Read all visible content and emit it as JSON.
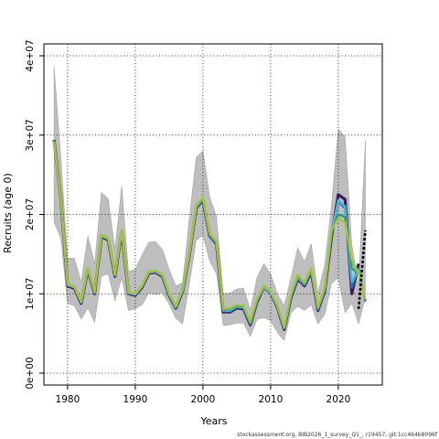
{
  "chart_data": {
    "type": "line",
    "title": "",
    "xlabel": "Years",
    "ylabel": "Recruits (age 0)",
    "xlim": [
      1976.5,
      2026.5
    ],
    "ylim": [
      -1500000,
      41500000
    ],
    "x_ticks": [
      1980,
      1990,
      2000,
      2010,
      2020
    ],
    "x_tick_labels": [
      "1980",
      "1990",
      "2000",
      "2010",
      "2020"
    ],
    "y_ticks": [
      0,
      10000000,
      20000000,
      30000000,
      40000000
    ],
    "y_tick_labels": [
      "0e+00",
      "1e+07",
      "2e+07",
      "3e+07",
      "4e+07"
    ],
    "grid": true,
    "grid_style": "dotted",
    "band_color": "#bebebe",
    "x": [
      1978,
      1979,
      1980,
      1981,
      1982,
      1983,
      1984,
      1985,
      1986,
      1987,
      1988,
      1989,
      1990,
      1991,
      1992,
      1993,
      1994,
      1995,
      1996,
      1997,
      1998,
      1999,
      2000,
      2001,
      2002,
      2003,
      2004,
      2005,
      2006,
      2007,
      2008,
      2009,
      2010,
      2011,
      2012,
      2013,
      2014,
      2015,
      2016,
      2017,
      2018,
      2019,
      2020,
      2021,
      2022,
      2023,
      2024
    ],
    "uncertainty_band": {
      "lower": [
        19000000,
        17000000,
        8800000,
        8500000,
        6800000,
        8200000,
        6400000,
        12200000,
        12500000,
        9100000,
        12000000,
        7900000,
        8100000,
        8600000,
        10100000,
        9900000,
        10100000,
        8700000,
        6900000,
        6200000,
        11300000,
        16700000,
        17400000,
        14100000,
        12500000,
        6000000,
        6100000,
        6300000,
        6300000,
        4600000,
        6800000,
        7000000,
        6600000,
        5100000,
        4100000,
        7600000,
        8400000,
        7900000,
        8600000,
        6200000,
        7400000,
        11300000,
        12000000,
        7600000,
        8800000,
        6200000,
        9500000
      ],
      "upper": [
        38700000,
        27200000,
        14500000,
        14500000,
        11500000,
        17300000,
        13800000,
        22800000,
        22000000,
        15600000,
        23600000,
        12800000,
        13100000,
        14900000,
        16500000,
        16600000,
        15600000,
        13100000,
        11000000,
        11400000,
        19600000,
        27200000,
        28000000,
        22200000,
        19700000,
        10000000,
        10100000,
        10600000,
        10700000,
        8000000,
        12100000,
        13800000,
        12500000,
        10000000,
        8500000,
        12000000,
        15800000,
        14100000,
        16300000,
        10100000,
        13700000,
        21200000,
        30800000,
        29800000,
        16200000,
        11100000,
        29300000
      ]
    },
    "series": [
      {
        "name": "",
        "color": "#3c1a5b",
        "end_year": 2023,
        "values": [
          29400000,
          22000000,
          11000000,
          10700000,
          8800000,
          13000000,
          10000000,
          17200000,
          16800000,
          12200000,
          17800000,
          10000000,
          9800000,
          10800000,
          12600000,
          12700000,
          12200000,
          9800000,
          8200000,
          10300000,
          14900000,
          20800000,
          21800000,
          17300000,
          16300000,
          7700000,
          7700000,
          8200000,
          8100000,
          6100000,
          9000000,
          10800000,
          10100000,
          8300000,
          5500000,
          9500000,
          11900000,
          11000000,
          12700000,
          7900000,
          10400000,
          17200000,
          22500000,
          21900000,
          10000000,
          13800000,
          8100000
        ]
      },
      {
        "name": "",
        "color": "#2e6fa6",
        "end_year": 2024,
        "values": [
          29300000,
          22000000,
          11100000,
          10800000,
          8900000,
          13100000,
          10100000,
          17300000,
          16900000,
          12300000,
          17900000,
          10100000,
          9900000,
          10900000,
          12700000,
          12800000,
          12300000,
          9900000,
          8300000,
          10400000,
          15000000,
          20900000,
          21900000,
          17400000,
          16400000,
          7800000,
          7800000,
          8300000,
          8200000,
          6200000,
          9100000,
          10900000,
          10200000,
          8400000,
          5600000,
          9600000,
          12000000,
          11100000,
          12800000,
          8000000,
          10500000,
          17500000,
          21600000,
          20800000,
          10800000,
          13200000,
          9000000
        ]
      },
      {
        "name": "",
        "color": "#4fb6dc",
        "end_year": 2024,
        "values": [
          29200000,
          21900000,
          11100000,
          10800000,
          8900000,
          13100000,
          10100000,
          17300000,
          16900000,
          12300000,
          17900000,
          10100000,
          9900000,
          10900000,
          12700000,
          12800000,
          12300000,
          9900000,
          8300000,
          10400000,
          15000000,
          20900000,
          21900000,
          17400000,
          16400000,
          7900000,
          7900000,
          8400000,
          8300000,
          6300000,
          9200000,
          10800000,
          10100000,
          8400000,
          5700000,
          9700000,
          12100000,
          11200000,
          12900000,
          8100000,
          10600000,
          17700000,
          21800000,
          21000000,
          11500000,
          13000000,
          9200000
        ]
      },
      {
        "name": "",
        "color": "#2f9c70",
        "end_year": 2024,
        "values": [
          29300000,
          22100000,
          11200000,
          10900000,
          9000000,
          13200000,
          10200000,
          17400000,
          17000000,
          12400000,
          18000000,
          10200000,
          10000000,
          11000000,
          12800000,
          12900000,
          12400000,
          10000000,
          8400000,
          10500000,
          15100000,
          21100000,
          22000000,
          17500000,
          16500000,
          8000000,
          8100000,
          8500000,
          8400000,
          6400000,
          9300000,
          11000000,
          10300000,
          8500000,
          5800000,
          9800000,
          12300000,
          11300000,
          13000000,
          8200000,
          10700000,
          17800000,
          20000000,
          19700000,
          13200000,
          12600000,
          9200000
        ]
      },
      {
        "name": "",
        "color": "#a6c43a",
        "end_year": 2024,
        "values": [
          29200000,
          22100000,
          11200000,
          10900000,
          9000000,
          13200000,
          10200000,
          17400000,
          17000000,
          12400000,
          18000000,
          10200000,
          10000000,
          11000000,
          12800000,
          12900000,
          12400000,
          10000000,
          8400000,
          10500000,
          15100000,
          21200000,
          22100000,
          17600000,
          16600000,
          8100000,
          8200000,
          8600000,
          8500000,
          6500000,
          9400000,
          11000000,
          10300000,
          8500000,
          5800000,
          9900000,
          12400000,
          11400000,
          13200000,
          8300000,
          10800000,
          18000000,
          19500000,
          19000000,
          14300000,
          12500000,
          9300000
        ]
      }
    ],
    "projection_segment": {
      "style": "dashed",
      "color": "#000000",
      "x": [
        2023,
        2024
      ],
      "values": [
        8100000,
        18000000
      ]
    }
  },
  "footer": {
    "text": "stockassessment.org, BIB2026_1_survey_Q1_, r19457, git:1cc464b8096f"
  }
}
